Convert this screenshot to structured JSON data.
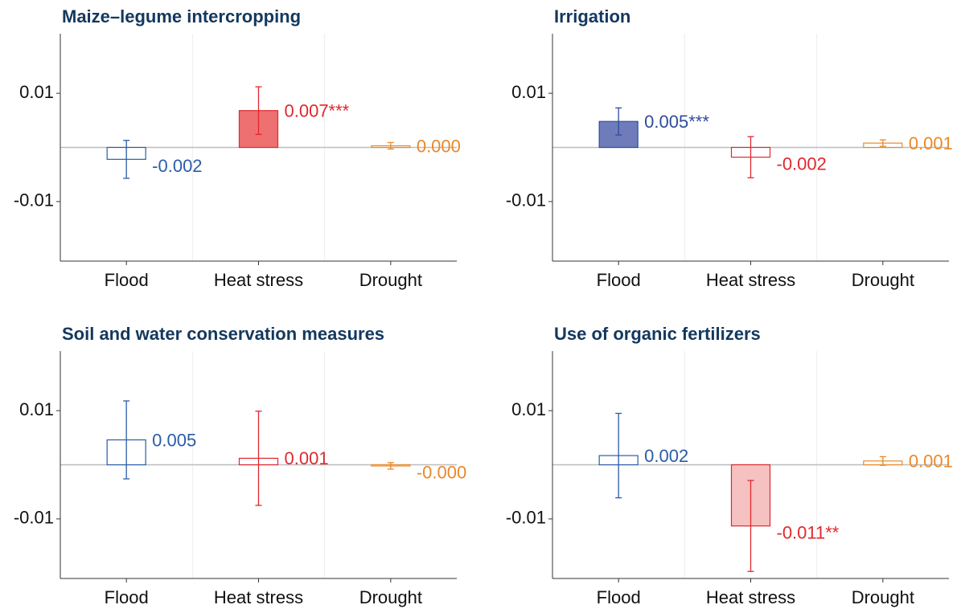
{
  "chart_data": [
    {
      "type": "bar",
      "title": "Maize–legume intercropping",
      "categories": [
        "Flood",
        "Heat stress",
        "Drought"
      ],
      "values": [
        -0.0022,
        0.0068,
        0.0003
      ],
      "errors": [
        0.0035,
        0.0044,
        0.0006
      ],
      "value_labels": [
        "-0.002",
        "0.007***",
        "0.000"
      ],
      "colors": [
        "#2a5da8",
        "#e0282e",
        "#e8892a"
      ],
      "fills": [
        null,
        "#ef7070",
        null
      ],
      "ylim": [
        -0.021,
        0.021
      ],
      "yticks": [
        -0.01,
        0.01
      ]
    },
    {
      "type": "bar",
      "title": "Irrigation",
      "categories": [
        "Flood",
        "Heat stress",
        "Drought"
      ],
      "values": [
        0.0048,
        -0.0018,
        0.0008
      ],
      "errors": [
        0.0025,
        0.0038,
        0.0006
      ],
      "value_labels": [
        "0.005***",
        "-0.002",
        "0.001"
      ],
      "colors": [
        "#2f4d9c",
        "#e0282e",
        "#e8892a"
      ],
      "fills": [
        "#6e7cb9",
        null,
        null
      ],
      "ylim": [
        -0.021,
        0.021
      ],
      "yticks": [
        -0.01,
        0.01
      ]
    },
    {
      "type": "bar",
      "title": "Soil and water conservation measures",
      "categories": [
        "Flood",
        "Heat stress",
        "Drought"
      ],
      "values": [
        0.0046,
        0.0012,
        -0.0002
      ],
      "errors": [
        0.0072,
        0.0087,
        0.0006
      ],
      "value_labels": [
        "0.005",
        "0.001",
        "-0.000"
      ],
      "colors": [
        "#2a5da8",
        "#e0282e",
        "#e8892a"
      ],
      "fills": [
        null,
        null,
        null
      ],
      "ylim": [
        -0.021,
        0.021
      ],
      "yticks": [
        -0.01,
        0.01
      ]
    },
    {
      "type": "bar",
      "title": "Use of organic fertilizers",
      "categories": [
        "Flood",
        "Heat stress",
        "Drought"
      ],
      "values": [
        0.0017,
        -0.0113,
        0.0007
      ],
      "errors": [
        0.0078,
        0.0084,
        0.0008
      ],
      "value_labels": [
        "0.002",
        "-0.011**",
        "0.001"
      ],
      "colors": [
        "#2a5da8",
        "#e0282e",
        "#e8892a"
      ],
      "fills": [
        null,
        "#f5c1c1",
        null
      ],
      "ylim": [
        -0.021,
        0.021
      ],
      "yticks": [
        -0.01,
        0.01
      ]
    }
  ]
}
